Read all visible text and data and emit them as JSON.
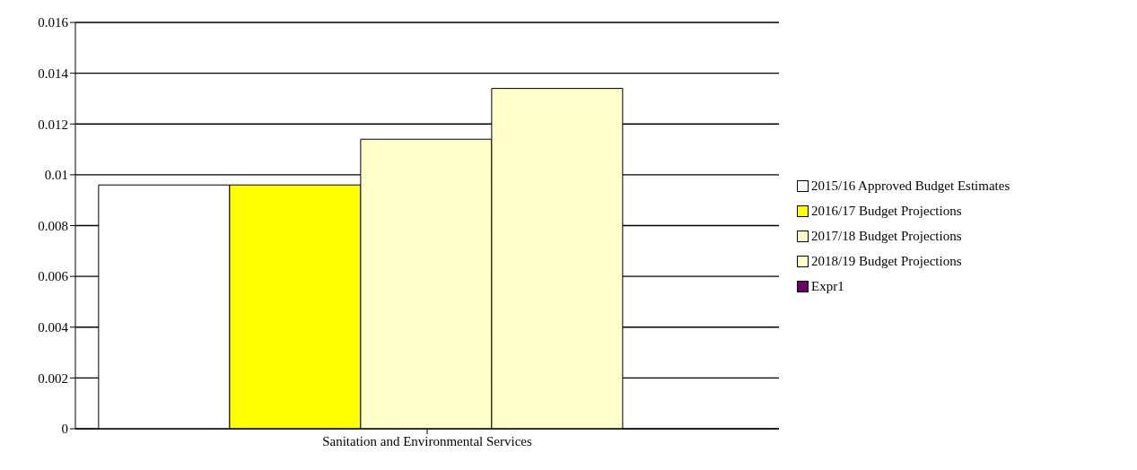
{
  "chart_data": {
    "type": "bar",
    "categories": [
      "Sanitation and Environmental Services"
    ],
    "series": [
      {
        "name": "2015/16 Approved Budget Estimates",
        "color": "#ffffff",
        "values": [
          0.0096
        ]
      },
      {
        "name": "2016/17 Budget Projections",
        "color": "#ffff00",
        "values": [
          0.0096
        ]
      },
      {
        "name": "2017/18 Budget Projections",
        "color": "#ffffcc",
        "values": [
          0.0114
        ]
      },
      {
        "name": "2018/19 Budget Projections",
        "color": "#ffffcc",
        "values": [
          0.0134
        ]
      },
      {
        "name": "Expr1",
        "color": "#660066",
        "values": [
          null
        ]
      }
    ],
    "ylim": [
      0,
      0.016
    ],
    "yticks": [
      0,
      0.002,
      0.004,
      0.006,
      0.008,
      0.01,
      0.012,
      0.014,
      0.016
    ],
    "grid": "y",
    "legend": "right"
  }
}
